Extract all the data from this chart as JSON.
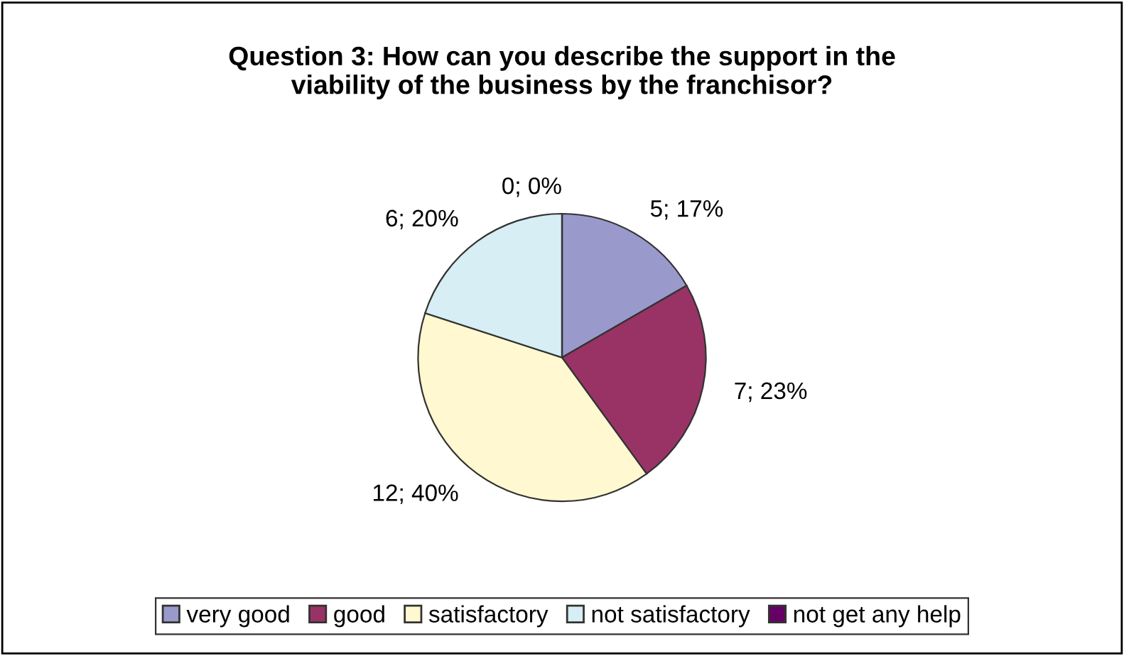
{
  "chart_data": {
    "type": "pie",
    "title": "Question 3: How can you describe the support in the\nviability of the business by the franchisor?",
    "categories": [
      "very good",
      "good",
      "satisfactory",
      "not satisfactory",
      "not get any help"
    ],
    "values": [
      5,
      7,
      12,
      6,
      0
    ],
    "colors": [
      "#9999cc",
      "#993366",
      "#fff8d0",
      "#d6eef4",
      "#660066"
    ],
    "value_labels": [
      "5; 17%",
      "7; 23%",
      "12; 40%",
      "6; 20%",
      "0; 0%"
    ],
    "legend": "bottom"
  }
}
